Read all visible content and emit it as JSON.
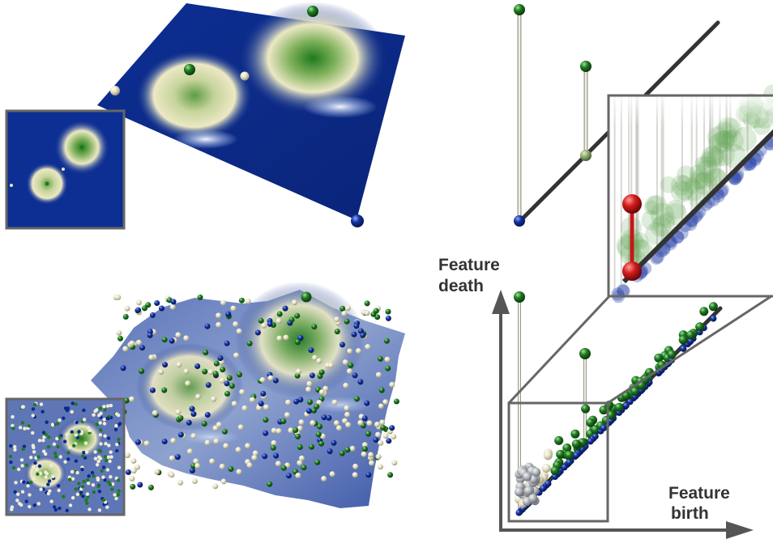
{
  "axes": {
    "y_label_line1": "Feature",
    "y_label_line2": "death",
    "x_label_line1": "Feature",
    "x_label_line2": "birth"
  },
  "colors": {
    "background": "#ffffff",
    "terrain_low": "#0a2a8a",
    "terrain_mid": "#e8e6c0",
    "terrain_high": "#1e7a1e",
    "maximum_sphere": "#1a7a1a",
    "minimum_sphere": "#0d2a8a",
    "saddle_sphere": "#e8e4c8",
    "diagonal_line": "#333333",
    "selected_pair": "#cc1a1a",
    "frame_gray": "#666666"
  },
  "panels": [
    "clean-terrain",
    "noisy-terrain",
    "clean-persistence-diagram",
    "noisy-persistence-diagram",
    "zoomed-inset"
  ]
}
